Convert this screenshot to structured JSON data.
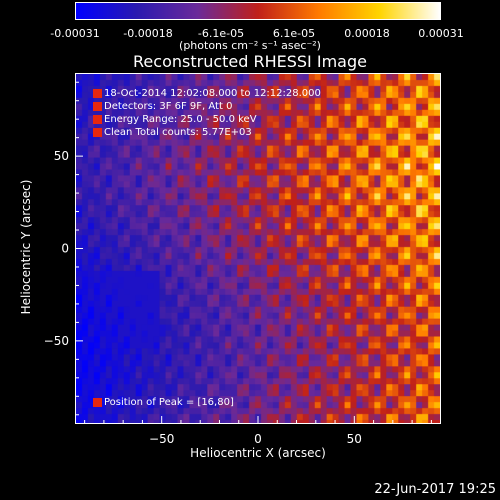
{
  "colorbar": {
    "ticks": [
      "-0.00031",
      "-0.00018",
      "-6.1e-05",
      "6.1e-05",
      "0.00018",
      "0.00031"
    ],
    "units": "(photons cm⁻² s⁻¹ asec⁻²)",
    "colormap": [
      "#0000ff",
      "#2a1ab0",
      "#6a2a9a",
      "#c0201a",
      "#ff7a00",
      "#ffd400",
      "#ffffff"
    ]
  },
  "chart_data": {
    "type": "heatmap",
    "title": "Reconstructed RHESSI Image",
    "xlabel": "Heliocentric X (arcsec)",
    "ylabel": "Heliocentric Y (arcsec)",
    "xlim": [
      -95,
      95
    ],
    "ylim": [
      -95,
      95
    ],
    "xticks": [
      -50,
      0,
      50
    ],
    "yticks": [
      -50,
      0,
      50
    ],
    "value_range": [
      -0.00031,
      0.00031
    ],
    "peak_position": [
      16,
      80
    ],
    "annotations": [
      "18-Oct-2014 12:02:08.000 to 12:12:28.000",
      "Detectors: 3F 6F 9F, Att 0",
      "Energy Range: 25.0 - 50.0 keV",
      "Clean     Total counts: 5.77E+03"
    ],
    "peak_text": "Position of Peak = [16,80]"
  },
  "footer": {
    "date": "22-Jun-2017 19:25"
  }
}
